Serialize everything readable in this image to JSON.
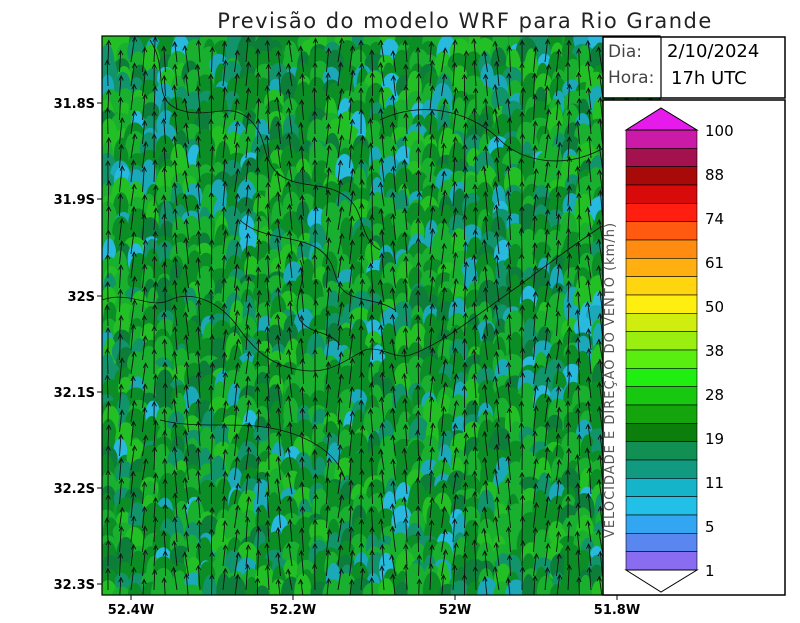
{
  "title": "Previsão do modelo WRF para Rio Grande",
  "info_box": {
    "date_label": "Dia:",
    "date_value": "2/10/2024",
    "hour_label": "Hora:",
    "hour_value": "17h UTC"
  },
  "axes": {
    "y_ticks": [
      "31.8S",
      "31.9S",
      "32S",
      "32.1S",
      "32.2S",
      "32.3S"
    ],
    "x_ticks": [
      "52.4W",
      "52.2W",
      "52W",
      "51.8W"
    ]
  },
  "colorbar": {
    "label": "VELOCIDADE E DIREÇÃO DO VENTO (km/h)",
    "tick_labels": [
      "100",
      "88",
      "74",
      "61",
      "50",
      "38",
      "28",
      "19",
      "11",
      "5",
      "1"
    ],
    "colors_top_to_bottom": [
      "#cc1aa8",
      "#a3124f",
      "#a80a0a",
      "#d80a0a",
      "#ff1e10",
      "#ff5a10",
      "#ff8c10",
      "#ffb010",
      "#ffd510",
      "#ffef10",
      "#cfee10",
      "#9aee10",
      "#5aee10",
      "#20ee10",
      "#18c70f",
      "#14a50c",
      "#0c7e0c",
      "#128f52",
      "#129a80",
      "#16b4c8",
      "#22c0e6",
      "#32a6f0",
      "#5a86f0",
      "#8a6cf0"
    ],
    "top_cap_color": "#e61aeb",
    "bottom_cap_color": "#ffffff"
  },
  "field": {
    "base_color": "#0f9d2a",
    "palette": [
      "#0c8e26",
      "#18b02e",
      "#22c025",
      "#0d7e3a",
      "#12946a",
      "#1ba8b8",
      "#27b9de"
    ],
    "arrow_color": "#111111",
    "wind_direction": "south-to-north"
  }
}
